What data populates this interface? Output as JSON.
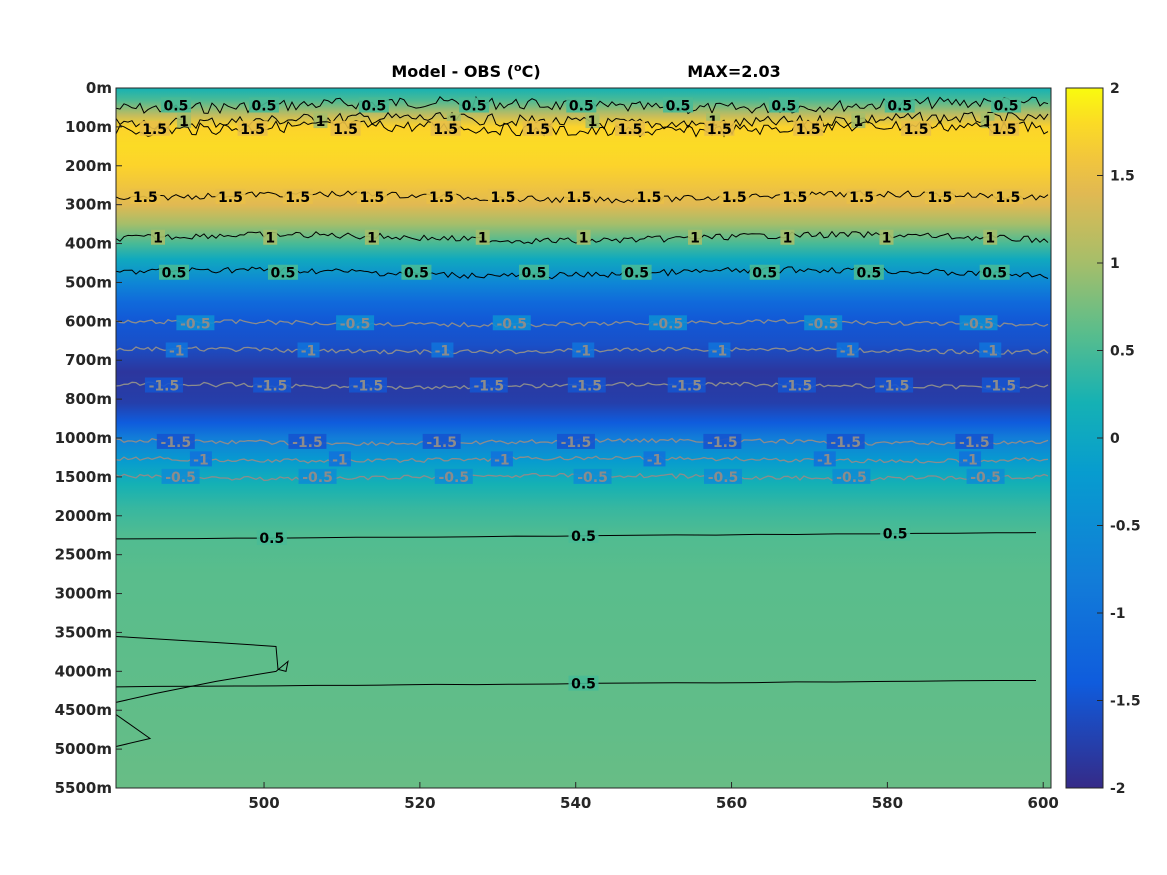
{
  "title": {
    "left_prefix": "Model - OBS (",
    "superscript": "o",
    "left_suffix": "C)",
    "right": "MAX=2.03"
  },
  "chart_data": {
    "type": "heatmap",
    "title": "Model - OBS (oC)   MAX=2.03",
    "xlabel": "",
    "ylabel": "",
    "xlim": [
      481,
      601
    ],
    "x_ticks": [
      500,
      520,
      540,
      560,
      580,
      600
    ],
    "y_ticks": [
      "0m",
      "100m",
      "200m",
      "300m",
      "400m",
      "500m",
      "600m",
      "700m",
      "800m",
      "1000m",
      "1500m",
      "2000m",
      "2500m",
      "3000m",
      "3500m",
      "4000m",
      "4500m",
      "5000m",
      "5500m"
    ],
    "colorbar": {
      "range": [
        -2,
        2
      ],
      "ticks": [
        2,
        1.5,
        1,
        0.5,
        0,
        -0.5,
        -1,
        -1.5,
        -2
      ],
      "tick_labels": [
        "2",
        "1.5",
        "1",
        "0.5",
        "0",
        "-0.5",
        "-1",
        "-1.5",
        "-2"
      ],
      "colormap": "parula"
    },
    "depth_profile": [
      {
        "level": 0.0,
        "value": 0.2
      },
      {
        "level": 0.3,
        "value": 0.5
      },
      {
        "level": 0.7,
        "value": 1.2
      },
      {
        "level": 1.0,
        "value": 1.75
      },
      {
        "level": 1.5,
        "value": 1.8
      },
      {
        "level": 2.0,
        "value": 1.75
      },
      {
        "level": 2.6,
        "value": 1.55
      },
      {
        "level": 3.0,
        "value": 1.4
      },
      {
        "level": 3.5,
        "value": 1.0
      },
      {
        "level": 4.0,
        "value": 0.5
      },
      {
        "level": 4.4,
        "value": 0.05
      },
      {
        "level": 5.0,
        "value": -0.6
      },
      {
        "level": 5.5,
        "value": -1.15
      },
      {
        "level": 6.0,
        "value": -1.45
      },
      {
        "level": 6.6,
        "value": -1.55
      },
      {
        "level": 7.3,
        "value": -1.85
      },
      {
        "level": 8.1,
        "value": -1.75
      },
      {
        "level": 8.6,
        "value": -1.4
      },
      {
        "level": 9.0,
        "value": -0.8
      },
      {
        "level": 9.6,
        "value": -0.2
      },
      {
        "level": 10.2,
        "value": 0.2
      },
      {
        "level": 10.8,
        "value": 0.4
      },
      {
        "level": 11.5,
        "value": 0.55
      },
      {
        "level": 12.5,
        "value": 0.6
      },
      {
        "level": 14.5,
        "value": 0.62
      },
      {
        "level": 16.5,
        "value": 0.65
      },
      {
        "level": 18.0,
        "value": 0.68
      }
    ],
    "contours": [
      {
        "level": 0.5,
        "depth_level": 0.45,
        "color": "#000000",
        "labels": [
          "0.5",
          "0.5",
          "0.5",
          "0.5",
          "0.5",
          "0.5",
          "0.5",
          "0.5",
          "0.5"
        ]
      },
      {
        "level": 1,
        "depth_level": 0.85,
        "color": "#000000",
        "labels": [
          "1",
          "1",
          "1",
          "1",
          "1",
          "1",
          "1"
        ]
      },
      {
        "level": 1.5,
        "depth_level": 1.05,
        "color": "#000000",
        "labels": [
          "1.5",
          "1.5",
          "1.5",
          "1.5",
          "1.5",
          "1.5",
          "1.5",
          "1.5",
          "1.5",
          "1.5"
        ]
      },
      {
        "level": 1.5,
        "depth_level": 2.8,
        "color": "#000000",
        "labels": [
          "1.5",
          "1.5",
          "1.5",
          "1.5",
          "1.5",
          "1.5",
          "1.5",
          "1.5",
          "1.5",
          "1.5",
          "1.5",
          "1.5",
          "1.5"
        ]
      },
      {
        "level": 1,
        "depth_level": 3.85,
        "color": "#000000",
        "labels": [
          "1",
          "1",
          "1",
          "1",
          "1",
          "1",
          "1",
          "1",
          "1"
        ]
      },
      {
        "level": 0.5,
        "depth_level": 4.75,
        "color": "#000000",
        "labels": [
          "0.5",
          "0.5",
          "0.5",
          "0.5",
          "0.5",
          "0.5",
          "0.5",
          "0.5"
        ]
      },
      {
        "level": -0.5,
        "depth_level": 6.05,
        "color": "#8c8c8c",
        "labels": [
          "-0.5",
          "-0.5",
          "-0.5",
          "-0.5",
          "-0.5",
          "-0.5"
        ]
      },
      {
        "level": -1,
        "depth_level": 6.75,
        "color": "#8c8c8c",
        "labels": [
          "-1",
          "-1",
          "-1",
          "-1",
          "-1",
          "-1",
          "-1"
        ]
      },
      {
        "level": -1.5,
        "depth_level": 7.65,
        "color": "#8c8c8c",
        "labels": [
          "-1.5",
          "-1.5",
          "-1.5",
          "-1.5",
          "-1.5",
          "-1.5",
          "-1.5",
          "-1.5",
          "-1.5"
        ]
      },
      {
        "level": -1.5,
        "depth_level": 9.1,
        "color": "#8c8c8c",
        "labels": [
          "-1.5",
          "-1.5",
          "-1.5",
          "-1.5",
          "-1.5",
          "-1.5",
          "-1.5"
        ]
      },
      {
        "level": -1,
        "depth_level": 9.55,
        "color": "#8c8c8c",
        "labels": [
          "-1",
          "-1",
          "-1",
          "-1",
          "-1",
          "-1"
        ]
      },
      {
        "level": -0.5,
        "depth_level": 10.0,
        "color": "#8c8c8c",
        "labels": [
          "-0.5",
          "-0.5",
          "-0.5",
          "-0.5",
          "-0.5",
          "-0.5",
          "-0.5"
        ]
      },
      {
        "level": 0.5,
        "depth_level": 11.6,
        "color": "#000000",
        "labels": [
          "0.5",
          "0.5",
          "0.5"
        ]
      },
      {
        "level": 0.5,
        "depth_level": 15.4,
        "color": "#000000",
        "labels": [
          "0.5"
        ]
      }
    ]
  }
}
